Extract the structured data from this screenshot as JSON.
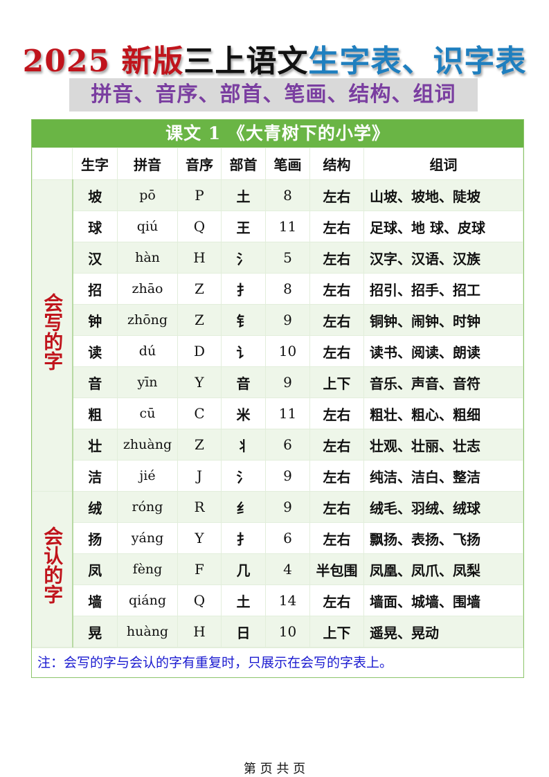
{
  "title": {
    "part1": "2025 新版",
    "part2": "三上语文",
    "part3": "生字表、识字表"
  },
  "subtitle": "拼音、音序、部首、笔画、结构、组词",
  "lesson_title": "课文 1 《大青树下的小学》",
  "headers": [
    "",
    "生字",
    "拼音",
    "音序",
    "部首",
    "笔画",
    "结构",
    "组词"
  ],
  "groups": [
    {
      "label": "会写的字",
      "rows": [
        [
          "坡",
          "pō",
          "P",
          "土",
          "8",
          "左右",
          "山坡、坡地、陡坡"
        ],
        [
          "球",
          "qiú",
          "Q",
          "王",
          "11",
          "左右",
          "足球、地 球、皮球"
        ],
        [
          "汉",
          "hàn",
          "H",
          "氵",
          "5",
          "左右",
          "汉字、汉语、汉族"
        ],
        [
          "招",
          "zhāo",
          "Z",
          "扌",
          "8",
          "左右",
          "招引、招手、招工"
        ],
        [
          "钟",
          "zhōng",
          "Z",
          "钅",
          "9",
          "左右",
          "铜钟、闹钟、时钟"
        ],
        [
          "读",
          "dú",
          "D",
          "讠",
          "10",
          "左右",
          "读书、阅读、朗读"
        ],
        [
          "音",
          "yīn",
          "Y",
          "音",
          "9",
          "上下",
          "音乐、声音、音符"
        ],
        [
          "粗",
          "cū",
          "C",
          "米",
          "11",
          "左右",
          "粗壮、粗心、粗细"
        ],
        [
          "壮",
          "zhuàng",
          "Z",
          "丬",
          "6",
          "左右",
          "壮观、壮丽、壮志"
        ],
        [
          "洁",
          "jié",
          "J",
          "氵",
          "9",
          "左右",
          "纯洁、洁白、整洁"
        ]
      ]
    },
    {
      "label": "会认的字",
      "rows": [
        [
          "绒",
          "róng",
          "R",
          "纟",
          "9",
          "左右",
          "绒毛、羽绒、绒球"
        ],
        [
          "扬",
          "yáng",
          "Y",
          "扌",
          "6",
          "左右",
          "飘扬、表扬、飞扬"
        ],
        [
          "凤",
          "fèng",
          "F",
          "几",
          "4",
          "半包围",
          "凤凰、凤爪、凤梨"
        ],
        [
          "墙",
          "qiáng",
          "Q",
          "土",
          "14",
          "左右",
          "墙面、城墙、围墙"
        ],
        [
          "晃",
          "huàng",
          "H",
          "日",
          "10",
          "上下",
          "遥晃、晃动"
        ]
      ]
    }
  ],
  "note": "注：会写的字与会认的字有重复时，只展示在会写的字表上。",
  "footer": "第 页 共 页",
  "colors": {
    "title_red": "#c0141c",
    "title_blue": "#1f7fbf",
    "subtitle_purple": "#7a3ea0",
    "lesson_green": "#6ab545",
    "note_blue": "#1a1ad0"
  }
}
